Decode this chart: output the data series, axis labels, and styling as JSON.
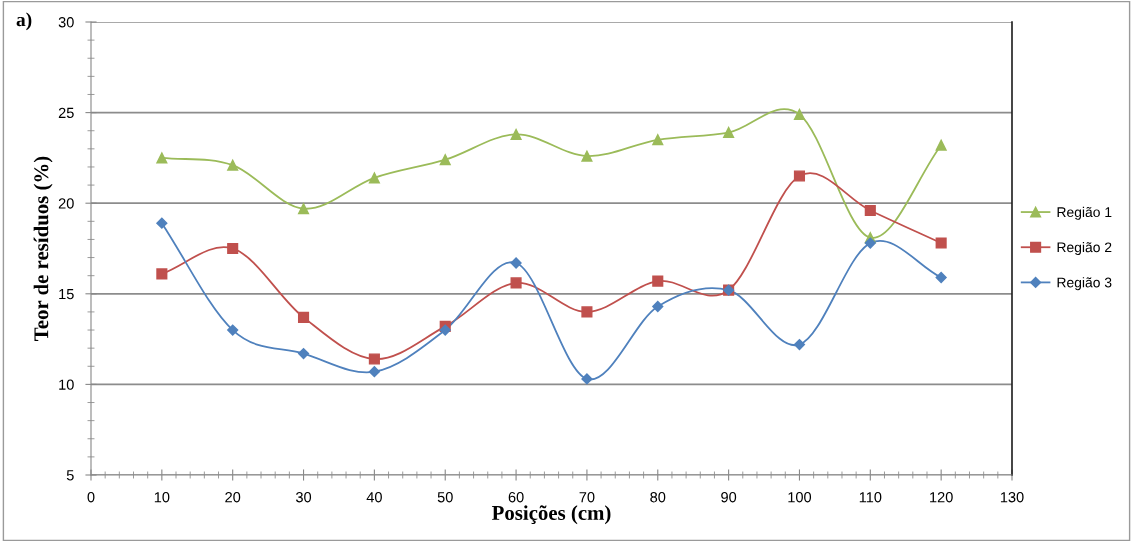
{
  "chart_data": {
    "type": "line",
    "xlabel": "Posições (cm)",
    "ylabel": "Teor de resíduos (%)",
    "x": [
      10,
      20,
      30,
      40,
      50,
      60,
      70,
      80,
      90,
      100,
      110,
      120
    ],
    "series": [
      {
        "name": "Região 1",
        "color": "#9bbb59",
        "marker": "triangle",
        "values": [
          22.5,
          22.1,
          19.7,
          21.4,
          22.4,
          23.8,
          22.6,
          23.5,
          23.9,
          24.9,
          18.1,
          23.2
        ]
      },
      {
        "name": "Região 2",
        "color": "#c0504d",
        "marker": "square",
        "values": [
          16.1,
          17.5,
          13.7,
          11.4,
          13.2,
          15.6,
          14.0,
          15.7,
          15.2,
          21.5,
          19.6,
          17.8
        ]
      },
      {
        "name": "Região 3",
        "color": "#4f81bd",
        "marker": "diamond",
        "values": [
          18.9,
          13.0,
          11.7,
          10.7,
          13.0,
          16.7,
          10.3,
          14.3,
          15.2,
          12.2,
          17.8,
          15.9
        ]
      }
    ],
    "xlim": [
      0,
      130
    ],
    "xticks": [
      0,
      10,
      20,
      30,
      40,
      50,
      60,
      70,
      80,
      90,
      100,
      110,
      120,
      130
    ],
    "ylim": [
      5,
      30
    ],
    "yticks": [
      5,
      10,
      15,
      20,
      25,
      30
    ],
    "grid": "y",
    "legend": "right",
    "line_style": "solid",
    "annotations": [
      "a)"
    ]
  }
}
